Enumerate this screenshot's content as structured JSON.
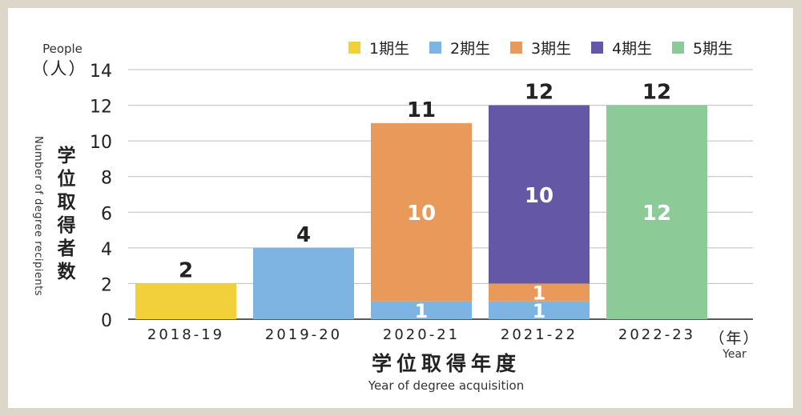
{
  "chart_data": {
    "type": "bar",
    "stacked": true,
    "categories": [
      "2018-19",
      "2019-20",
      "2020-21",
      "2021-22",
      "2022-23"
    ],
    "series": [
      {
        "name": "1期生",
        "color": "#f2d03b",
        "values": [
          2,
          0,
          0,
          0,
          0
        ]
      },
      {
        "name": "2期生",
        "color": "#7eb4e2",
        "values": [
          0,
          4,
          1,
          1,
          0
        ]
      },
      {
        "name": "3期生",
        "color": "#e99a5b",
        "values": [
          0,
          0,
          10,
          1,
          0
        ]
      },
      {
        "name": "4期生",
        "color": "#6457a5",
        "values": [
          0,
          0,
          0,
          10,
          0
        ]
      },
      {
        "name": "5期生",
        "color": "#8ccb98",
        "values": [
          0,
          0,
          0,
          0,
          12
        ]
      }
    ],
    "totals": [
      2,
      4,
      11,
      12,
      12
    ],
    "ylim": [
      0,
      14
    ],
    "yticks": [
      0,
      2,
      4,
      6,
      8,
      10,
      12,
      14
    ],
    "grid": true,
    "legend_position": "top-right",
    "ylabel": {
      "en_top": "People",
      "unit": "（人）",
      "jp": "学位取得者数",
      "en_side": "Number of degree recipients"
    },
    "xlabel": {
      "jp": "学位取得年度",
      "en": "Year of degree acquisition",
      "unit": "（年）",
      "unit_en": "Year"
    }
  }
}
